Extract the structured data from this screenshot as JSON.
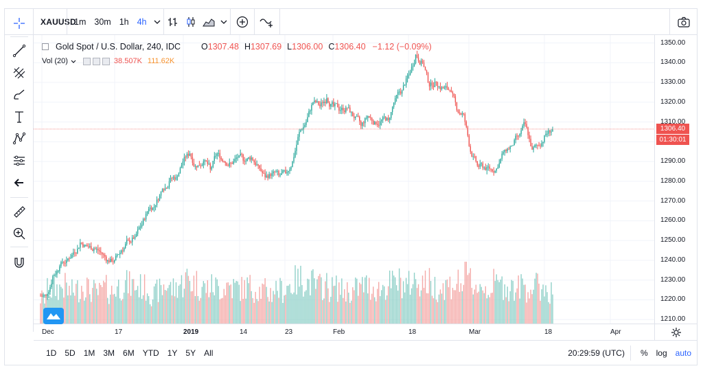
{
  "toolbar": {
    "symbol": "XAUUSD",
    "intervals": [
      "1m",
      "30m",
      "1h",
      "4h"
    ],
    "active_interval": "4h"
  },
  "legend": {
    "title": "Gold Spot / U.S. Dollar, 240, IDC",
    "open_key": "O",
    "open": "1307.48",
    "high_key": "H",
    "high": "1307.69",
    "low_key": "L",
    "low": "1306.00",
    "close_key": "C",
    "close": "1306.40",
    "change": "−1.12 (−0.09%)",
    "vol_label": "Vol (20)",
    "vol_value1": "38.507K",
    "vol_value2": "111.62K"
  },
  "price_axis": {
    "ticks": [
      "1350.00",
      "1340.00",
      "1330.00",
      "1320.00",
      "1310.00",
      "1290.00",
      "1280.00",
      "1270.00",
      "1260.00",
      "1250.00",
      "1240.00",
      "1230.00",
      "1220.00",
      "1210.00"
    ],
    "last_price_tag": "1306.40",
    "countdown_tag": "01:30:01"
  },
  "time_axis": {
    "labels": [
      "Dec",
      "17",
      "2019",
      "14",
      "23",
      "Feb",
      "18",
      "Mar",
      "18",
      "Apr"
    ]
  },
  "bottom": {
    "ranges": [
      "1D",
      "5D",
      "1M",
      "3M",
      "6M",
      "YTD",
      "1Y",
      "5Y",
      "All"
    ],
    "clock": "20:29:59 (UTC)",
    "percent": "%",
    "log": "log",
    "auto": "auto"
  },
  "colors": {
    "up": "#26a69a",
    "down": "#ef5350",
    "vol_up": "#8fd0c8",
    "vol_down": "#f4a9a7",
    "accent": "#2962ff"
  },
  "chart_data": {
    "type": "candlestick",
    "title": "Gold Spot / U.S. Dollar, 240, IDC",
    "xlabel": "",
    "ylabel": "",
    "ylim": [
      1208,
      1354
    ],
    "x_tick_labels": [
      "Dec",
      "17",
      "2019",
      "14",
      "23",
      "Feb",
      "18",
      "Mar",
      "18",
      "Apr"
    ],
    "series": [
      {
        "name": "price",
        "x": [
          "Dec 3",
          "Dec 4",
          "Dec 5",
          "Dec 6",
          "Dec 7",
          "Dec 10",
          "Dec 11",
          "Dec 12",
          "Dec 13",
          "Dec 14",
          "Dec 17",
          "Dec 18",
          "Dec 19",
          "Dec 20",
          "Dec 21",
          "Dec 24",
          "Dec 26",
          "Dec 27",
          "Dec 28",
          "Dec 31",
          "Jan 2",
          "Jan 3",
          "Jan 4",
          "Jan 7",
          "Jan 8",
          "Jan 9",
          "Jan 10",
          "Jan 11",
          "Jan 14",
          "Jan 15",
          "Jan 16",
          "Jan 17",
          "Jan 18",
          "Jan 21",
          "Jan 22",
          "Jan 23",
          "Jan 24",
          "Jan 25",
          "Jan 28",
          "Jan 29",
          "Jan 30",
          "Jan 31",
          "Feb 1",
          "Feb 4",
          "Feb 5",
          "Feb 6",
          "Feb 7",
          "Feb 8",
          "Feb 11",
          "Feb 12",
          "Feb 13",
          "Feb 14",
          "Feb 15",
          "Feb 18",
          "Feb 19",
          "Feb 20",
          "Feb 21",
          "Feb 22",
          "Feb 25",
          "Feb 26",
          "Feb 27",
          "Feb 28",
          "Mar 1",
          "Mar 4",
          "Mar 5",
          "Mar 6",
          "Mar 7",
          "Mar 8",
          "Mar 11",
          "Mar 12",
          "Mar 13",
          "Mar 14",
          "Mar 15",
          "Mar 18",
          "Mar 19"
        ],
        "close": [
          1222,
          1232,
          1237,
          1240,
          1244,
          1249,
          1247,
          1246,
          1244,
          1240,
          1240,
          1245,
          1250,
          1252,
          1258,
          1266,
          1268,
          1276,
          1280,
          1282,
          1290,
          1294,
          1287,
          1290,
          1286,
          1294,
          1290,
          1289,
          1292,
          1290,
          1292,
          1288,
          1282,
          1284,
          1283,
          1284,
          1290,
          1305,
          1310,
          1320,
          1318,
          1322,
          1318,
          1316,
          1317,
          1312,
          1308,
          1313,
          1310,
          1311,
          1311,
          1322,
          1326,
          1334,
          1344,
          1340,
          1328,
          1330,
          1327,
          1326,
          1316,
          1314,
          1295,
          1288,
          1287,
          1286,
          1287,
          1296,
          1298,
          1303,
          1309,
          1296,
          1298,
          1304,
          1306.4
        ],
        "volume": [
          40,
          52,
          55,
          58,
          50,
          54,
          60,
          52,
          48,
          55,
          50,
          58,
          62,
          60,
          58,
          56,
          45,
          52,
          60,
          55,
          62,
          70,
          64,
          58,
          56,
          58,
          55,
          60,
          57,
          55,
          58,
          54,
          52,
          48,
          55,
          53,
          60,
          66,
          70,
          64,
          58,
          60,
          55,
          56,
          52,
          50,
          55,
          60,
          57,
          54,
          58,
          62,
          65,
          60,
          66,
          68,
          64,
          58,
          56,
          60,
          62,
          64,
          70,
          60,
          58,
          55,
          62,
          60,
          58,
          55,
          60,
          55,
          58,
          56,
          50
        ]
      }
    ]
  }
}
